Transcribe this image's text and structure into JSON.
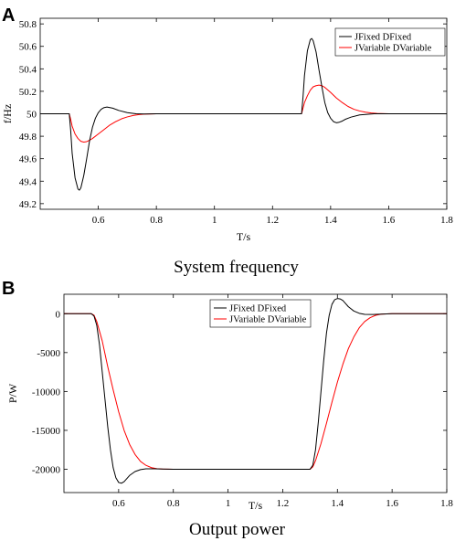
{
  "chart_data": [
    {
      "type": "line",
      "panel": "A",
      "caption": "System frequency",
      "xlabel": "T/s",
      "ylabel": "f/Hz",
      "xlim": [
        0.4,
        1.8
      ],
      "ylim": [
        49.15,
        50.85
      ],
      "xticks": [
        0.6,
        0.8,
        1,
        1.2,
        1.4,
        1.6,
        1.8
      ],
      "xtick_labels": [
        "0.6",
        "0.8",
        "1",
        "1.2",
        "1.4",
        "1.6",
        "1.8"
      ],
      "yticks": [
        49.2,
        49.4,
        49.6,
        49.8,
        50,
        50.2,
        50.4,
        50.6,
        50.8
      ],
      "ytick_labels": [
        "49.2",
        "49.4",
        "49.6",
        "49.8",
        "50",
        "50.2",
        "50.4",
        "50.6",
        "50.8"
      ],
      "legend_position": "top-right",
      "series": [
        {
          "name": "JFixed DFixed",
          "color": "#000000",
          "x": [
            0.4,
            0.5,
            0.505,
            0.51,
            0.52,
            0.53,
            0.535,
            0.54,
            0.55,
            0.56,
            0.57,
            0.58,
            0.59,
            0.6,
            0.61,
            0.62,
            0.63,
            0.64,
            0.65,
            0.67,
            0.7,
            0.73,
            0.76,
            0.8,
            1.0,
            1.3,
            1.305,
            1.31,
            1.32,
            1.33,
            1.335,
            1.34,
            1.35,
            1.36,
            1.37,
            1.38,
            1.39,
            1.4,
            1.41,
            1.42,
            1.43,
            1.44,
            1.45,
            1.47,
            1.5,
            1.55,
            1.6,
            1.8
          ],
          "y": [
            50,
            50,
            49.85,
            49.65,
            49.43,
            49.33,
            49.32,
            49.34,
            49.45,
            49.6,
            49.76,
            49.88,
            49.96,
            50.01,
            50.04,
            50.055,
            50.06,
            50.055,
            50.05,
            50.03,
            50.01,
            50.0,
            49.998,
            50,
            50,
            50,
            50.15,
            50.34,
            50.56,
            50.66,
            50.67,
            50.65,
            50.55,
            50.39,
            50.24,
            50.1,
            50.01,
            49.96,
            49.93,
            49.92,
            49.925,
            49.935,
            49.95,
            49.97,
            49.99,
            50.0,
            50.0,
            50
          ]
        },
        {
          "name": "JVariable DVariable",
          "color": "#ff0000",
          "x": [
            0.4,
            0.5,
            0.505,
            0.51,
            0.52,
            0.53,
            0.54,
            0.55,
            0.56,
            0.57,
            0.58,
            0.6,
            0.62,
            0.64,
            0.66,
            0.68,
            0.7,
            0.72,
            0.74,
            0.76,
            0.8,
            1.0,
            1.3,
            1.305,
            1.31,
            1.32,
            1.33,
            1.34,
            1.35,
            1.36,
            1.37,
            1.38,
            1.4,
            1.42,
            1.44,
            1.46,
            1.48,
            1.5,
            1.52,
            1.54,
            1.56,
            1.6,
            1.8
          ],
          "y": [
            50,
            50,
            49.95,
            49.89,
            49.82,
            49.78,
            49.755,
            49.748,
            49.752,
            49.765,
            49.78,
            49.82,
            49.86,
            49.9,
            49.93,
            49.955,
            49.972,
            49.985,
            49.993,
            49.997,
            50,
            50,
            50,
            50.05,
            50.1,
            50.16,
            50.21,
            50.24,
            50.25,
            50.255,
            50.25,
            50.235,
            50.19,
            50.14,
            50.1,
            50.065,
            50.04,
            50.025,
            50.014,
            50.007,
            50.003,
            50,
            50
          ]
        }
      ]
    },
    {
      "type": "line",
      "panel": "B",
      "caption": "Output power",
      "xlabel": "T/s",
      "ylabel": "P/W",
      "xlim": [
        0.4,
        1.8
      ],
      "ylim": [
        -23000,
        2500
      ],
      "xticks": [
        0.6,
        0.8,
        1,
        1.2,
        1.4,
        1.6,
        1.8
      ],
      "xtick_labels": [
        "0.6",
        "0.8",
        "1",
        "1.2",
        "1.4",
        "1.6",
        "1.8"
      ],
      "yticks": [
        -20000,
        -15000,
        -10000,
        -5000,
        0
      ],
      "ytick_labels": [
        "-20000",
        "-15000",
        "-10000",
        "-5000",
        "0"
      ],
      "legend_position": "top-center",
      "series": [
        {
          "name": "JFixed DFixed",
          "color": "#000000",
          "x": [
            0.4,
            0.5,
            0.51,
            0.52,
            0.53,
            0.54,
            0.55,
            0.56,
            0.57,
            0.58,
            0.59,
            0.6,
            0.61,
            0.62,
            0.63,
            0.64,
            0.66,
            0.68,
            0.7,
            0.73,
            0.76,
            0.8,
            1.0,
            1.3,
            1.31,
            1.32,
            1.33,
            1.34,
            1.35,
            1.36,
            1.37,
            1.38,
            1.39,
            1.4,
            1.41,
            1.42,
            1.43,
            1.44,
            1.46,
            1.48,
            1.5,
            1.53,
            1.56,
            1.6,
            1.8
          ],
          "y": [
            0,
            0,
            -300,
            -1500,
            -4000,
            -7500,
            -11000,
            -14500,
            -17500,
            -19800,
            -21100,
            -21700,
            -21800,
            -21600,
            -21200,
            -20800,
            -20300,
            -20050,
            -19950,
            -19950,
            -19980,
            -20000,
            -20000,
            -20000,
            -19500,
            -17500,
            -14000,
            -10000,
            -6000,
            -2500,
            -200,
            1200,
            1800,
            1950,
            1900,
            1700,
            1300,
            900,
            350,
            50,
            -80,
            -100,
            -50,
            0,
            0
          ]
        },
        {
          "name": "JVariable DVariable",
          "color": "#ff0000",
          "x": [
            0.4,
            0.5,
            0.51,
            0.52,
            0.54,
            0.56,
            0.58,
            0.6,
            0.62,
            0.64,
            0.66,
            0.68,
            0.7,
            0.72,
            0.74,
            0.76,
            0.8,
            1.0,
            1.3,
            1.31,
            1.32,
            1.34,
            1.36,
            1.38,
            1.4,
            1.42,
            1.44,
            1.46,
            1.48,
            1.5,
            1.52,
            1.54,
            1.56,
            1.6,
            1.8
          ],
          "y": [
            0,
            0,
            -200,
            -1000,
            -3500,
            -6800,
            -9800,
            -12600,
            -15000,
            -16800,
            -18100,
            -19000,
            -19500,
            -19800,
            -19930,
            -19980,
            -20000,
            -20000,
            -20000,
            -19700,
            -18900,
            -16700,
            -14100,
            -11400,
            -8800,
            -6500,
            -4500,
            -3000,
            -1800,
            -1000,
            -500,
            -200,
            -60,
            0,
            0
          ]
        }
      ]
    }
  ]
}
